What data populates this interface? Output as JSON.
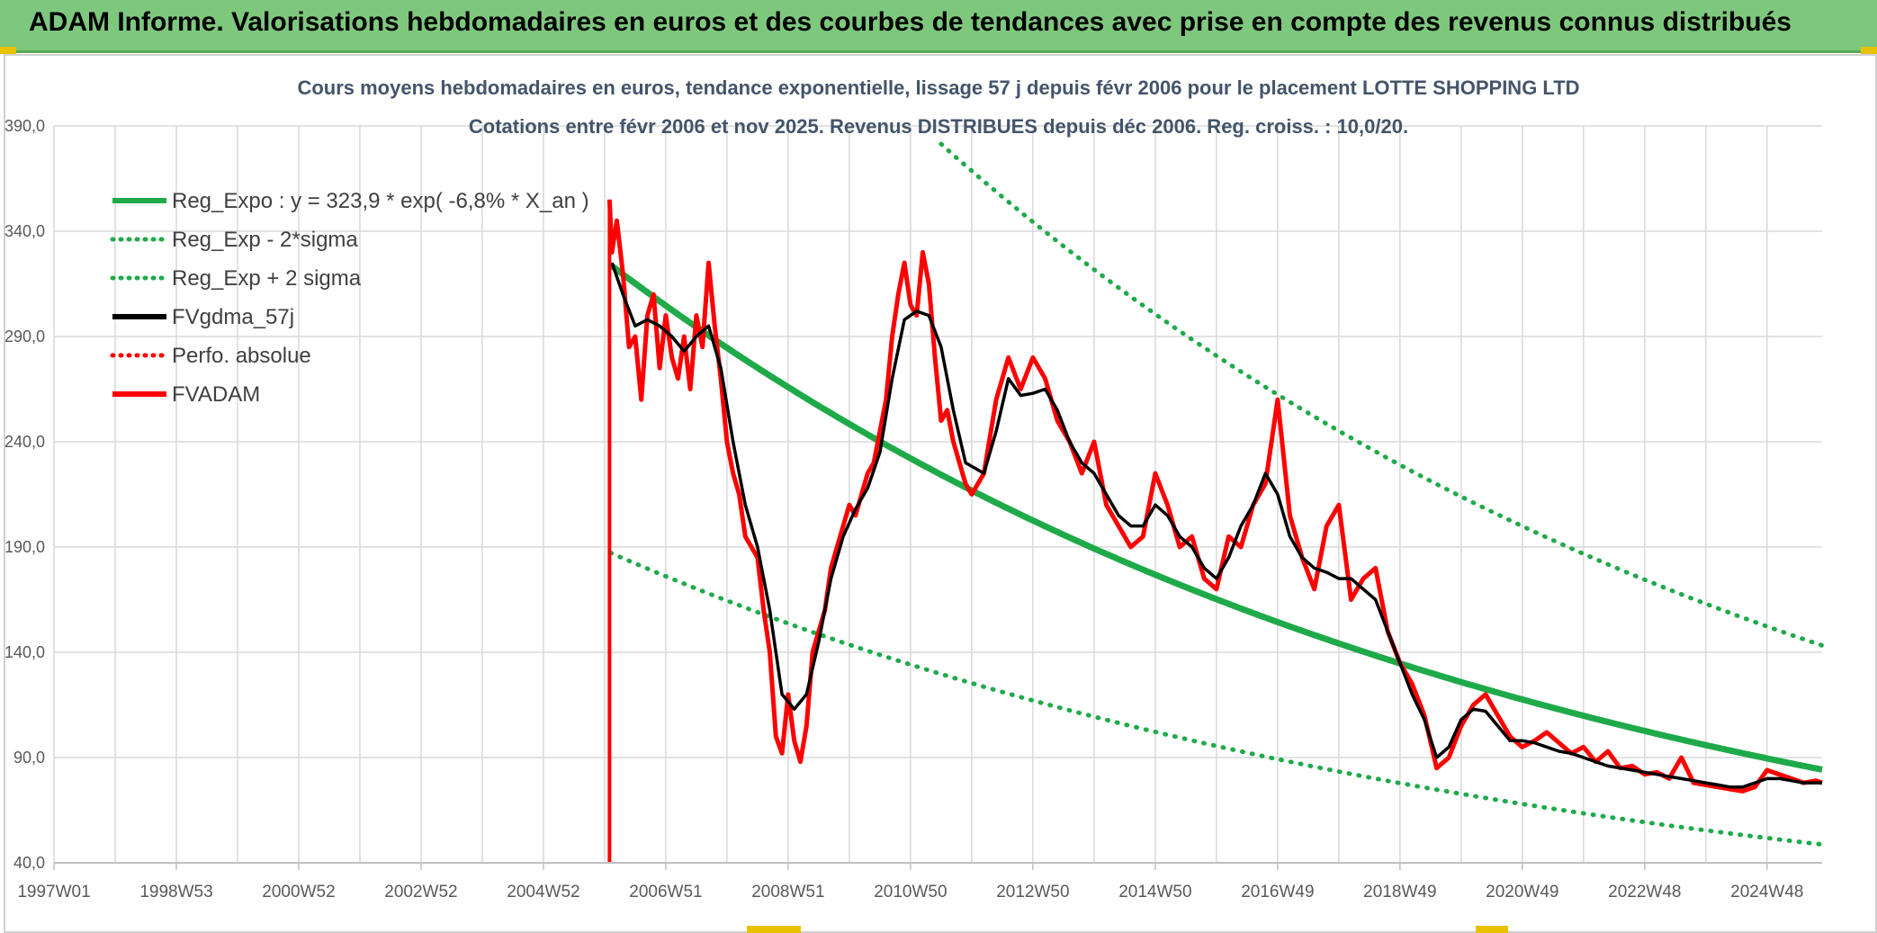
{
  "header": {
    "title": "ADAM Informe. Valorisations hebdomadaires en euros et des courbes de tendances avec prise en compte des revenus connus distribués"
  },
  "chart_data": {
    "type": "line",
    "title_line1": "Cours moyens hebdomadaires en euros, tendance exponentielle, lissage 57 j depuis févr 2006 pour le placement LOTTE SHOPPING LTD",
    "title_line2": "Cotations entre févr 2006 et nov 2025. Revenus DISTRIBUES depuis déc 2006. Reg. croiss. : 10,0/20.",
    "ylim": [
      40,
      390
    ],
    "yticks": [
      40,
      90,
      140,
      190,
      240,
      290,
      340,
      390
    ],
    "ytick_labels": [
      "40,0",
      "90,0",
      "140,0",
      "190,0",
      "240,0",
      "290,0",
      "340,0",
      "390,0"
    ],
    "xlim": [
      1997.0,
      2025.9
    ],
    "xticks": [
      1997.0,
      1999.0,
      2001.0,
      2003.0,
      2005.0,
      2007.0,
      2009.0,
      2011.0,
      2013.0,
      2015.0,
      2017.0,
      2019.0,
      2021.0,
      2023.0,
      2025.0
    ],
    "xtick_labels": [
      "1997W01",
      "1998W53",
      "2000W52",
      "2002W52",
      "2004W52",
      "2006W51",
      "2008W51",
      "2010W50",
      "2012W50",
      "2014W50",
      "2016W49",
      "2018W49",
      "2020W49",
      "2022W48",
      "2024W48"
    ],
    "grid": true,
    "legend_position": "top-left",
    "legend": [
      {
        "label": "Reg_Expo : y = 323,9 * exp( -6,8% *  X_an )",
        "color": "#1faa4a",
        "style": "solid"
      },
      {
        "label": "Reg_Exp - 2*sigma",
        "color": "#1faa4a",
        "style": "dotted"
      },
      {
        "label": "Reg_Exp + 2 sigma",
        "color": "#1faa4a",
        "style": "dotted"
      },
      {
        "label": "FVgdma_57j",
        "color": "#000000",
        "style": "solid"
      },
      {
        "label": "Perfo. absolue",
        "color": "#ff0000",
        "style": "dotted"
      },
      {
        "label": "FVADAM",
        "color": "#ff0000",
        "style": "solid"
      }
    ],
    "regression": {
      "start_year": 2006.1,
      "end_year": 2025.9,
      "a": 323.9,
      "rate": -0.068,
      "lower_factor": 0.578,
      "upper_factor": 1.7
    },
    "fvadam": {
      "x": [
        2006.08,
        2006.12,
        2006.2,
        2006.3,
        2006.4,
        2006.5,
        2006.6,
        2006.7,
        2006.8,
        2006.9,
        2007.0,
        2007.1,
        2007.2,
        2007.3,
        2007.4,
        2007.5,
        2007.6,
        2007.7,
        2007.8,
        2007.9,
        2008.0,
        2008.1,
        2008.2,
        2008.3,
        2008.4,
        2008.5,
        2008.6,
        2008.7,
        2008.8,
        2008.9,
        2009.0,
        2009.1,
        2009.2,
        2009.3,
        2009.4,
        2009.5,
        2009.6,
        2009.7,
        2009.8,
        2009.9,
        2010.0,
        2010.1,
        2010.2,
        2010.3,
        2010.4,
        2010.5,
        2010.6,
        2010.7,
        2010.8,
        2010.9,
        2011.0,
        2011.1,
        2011.2,
        2011.3,
        2011.4,
        2011.5,
        2011.6,
        2011.7,
        2011.8,
        2011.9,
        2012.0,
        2012.2,
        2012.4,
        2012.6,
        2012.8,
        2013.0,
        2013.2,
        2013.4,
        2013.6,
        2013.8,
        2014.0,
        2014.2,
        2014.4,
        2014.6,
        2014.8,
        2015.0,
        2015.2,
        2015.4,
        2015.6,
        2015.8,
        2016.0,
        2016.2,
        2016.4,
        2016.6,
        2016.8,
        2017.0,
        2017.2,
        2017.4,
        2017.6,
        2017.8,
        2018.0,
        2018.2,
        2018.4,
        2018.6,
        2018.8,
        2019.0,
        2019.2,
        2019.4,
        2019.6,
        2019.8,
        2020.0,
        2020.2,
        2020.4,
        2020.6,
        2020.8,
        2021.0,
        2021.2,
        2021.4,
        2021.6,
        2021.8,
        2022.0,
        2022.2,
        2022.4,
        2022.6,
        2022.8,
        2023.0,
        2023.2,
        2023.4,
        2023.6,
        2023.8,
        2024.0,
        2024.2,
        2024.4,
        2024.6,
        2024.8,
        2025.0,
        2025.2,
        2025.4,
        2025.6,
        2025.8,
        2025.9
      ],
      "y": [
        355,
        330,
        345,
        320,
        285,
        290,
        260,
        300,
        310,
        275,
        300,
        280,
        270,
        290,
        265,
        300,
        285,
        325,
        295,
        270,
        240,
        225,
        215,
        195,
        190,
        185,
        160,
        140,
        100,
        92,
        120,
        98,
        88,
        105,
        140,
        150,
        160,
        180,
        190,
        200,
        210,
        205,
        215,
        225,
        230,
        245,
        260,
        290,
        310,
        325,
        305,
        300,
        330,
        315,
        280,
        250,
        255,
        240,
        230,
        220,
        215,
        225,
        260,
        280,
        265,
        280,
        270,
        250,
        240,
        225,
        240,
        210,
        200,
        190,
        195,
        225,
        210,
        190,
        195,
        175,
        170,
        195,
        190,
        210,
        220,
        260,
        205,
        185,
        170,
        200,
        210,
        165,
        175,
        180,
        150,
        135,
        125,
        110,
        85,
        90,
        105,
        115,
        120,
        110,
        100,
        95,
        98,
        102,
        97,
        92,
        95,
        88,
        93,
        85,
        86,
        82,
        83,
        80,
        90,
        78,
        77,
        76,
        75,
        74,
        76,
        84,
        82,
        80,
        78,
        79,
        78
      ]
    },
    "fvgdma_57j": {
      "x": [
        2006.12,
        2006.3,
        2006.5,
        2006.7,
        2006.9,
        2007.1,
        2007.3,
        2007.5,
        2007.7,
        2007.9,
        2008.1,
        2008.3,
        2008.5,
        2008.7,
        2008.9,
        2009.1,
        2009.3,
        2009.5,
        2009.7,
        2009.9,
        2010.1,
        2010.3,
        2010.5,
        2010.7,
        2010.9,
        2011.1,
        2011.3,
        2011.5,
        2011.7,
        2011.9,
        2012.2,
        2012.4,
        2012.6,
        2012.8,
        2013.0,
        2013.2,
        2013.4,
        2013.6,
        2013.8,
        2014.0,
        2014.2,
        2014.4,
        2014.6,
        2014.8,
        2015.0,
        2015.2,
        2015.4,
        2015.6,
        2015.8,
        2016.0,
        2016.2,
        2016.4,
        2016.6,
        2016.8,
        2017.0,
        2017.2,
        2017.4,
        2017.6,
        2017.8,
        2018.0,
        2018.2,
        2018.4,
        2018.6,
        2018.8,
        2019.0,
        2019.2,
        2019.4,
        2019.6,
        2019.8,
        2020.0,
        2020.2,
        2020.4,
        2020.6,
        2020.8,
        2021.0,
        2021.2,
        2021.4,
        2021.6,
        2021.8,
        2022.0,
        2022.2,
        2022.4,
        2022.6,
        2022.8,
        2023.0,
        2023.2,
        2023.4,
        2023.6,
        2023.8,
        2024.0,
        2024.2,
        2024.4,
        2024.6,
        2024.8,
        2025.0,
        2025.2,
        2025.4,
        2025.6,
        2025.9
      ],
      "y": [
        325,
        310,
        295,
        298,
        295,
        290,
        283,
        290,
        295,
        275,
        240,
        210,
        190,
        160,
        120,
        113,
        120,
        145,
        175,
        195,
        208,
        218,
        235,
        270,
        298,
        302,
        300,
        285,
        255,
        230,
        225,
        245,
        270,
        262,
        263,
        265,
        255,
        240,
        230,
        225,
        215,
        205,
        200,
        200,
        210,
        205,
        195,
        190,
        180,
        175,
        185,
        200,
        210,
        225,
        215,
        195,
        185,
        180,
        178,
        175,
        175,
        170,
        165,
        150,
        135,
        120,
        108,
        90,
        95,
        108,
        113,
        112,
        105,
        98,
        98,
        97,
        95,
        93,
        92,
        90,
        88,
        86,
        85,
        84,
        83,
        82,
        81,
        80,
        79,
        78,
        77,
        76,
        76,
        78,
        80,
        80,
        79,
        78,
        78
      ]
    }
  }
}
